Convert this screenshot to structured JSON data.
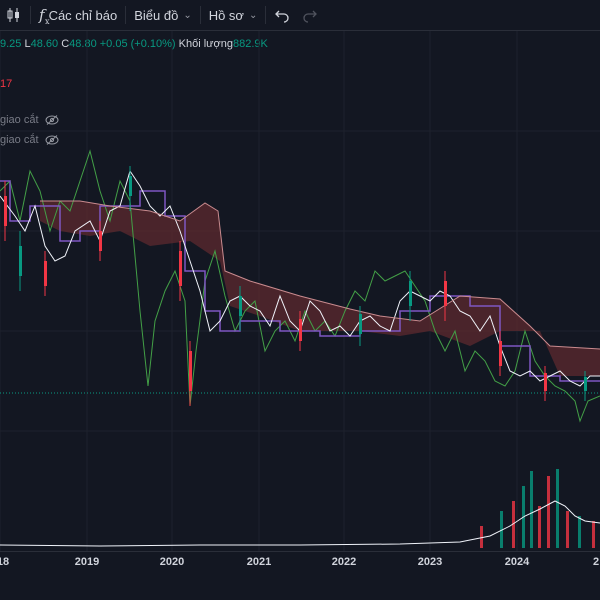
{
  "toolbar": {
    "indicators_label": "Các chỉ báo",
    "chart_label": "Biểu đồ",
    "profile_label": "Hồ sơ"
  },
  "ohlc": {
    "h_value": "9.25",
    "l_key": "L",
    "l_value": "48.60",
    "c_key": "C",
    "c_value": "48.80",
    "change": "+0.05 (+0.10%)",
    "volume_label": "Khối lượng",
    "volume_value": "882.9K"
  },
  "legend_value": "17",
  "indicators": [
    "giao cắt",
    "giao cắt"
  ],
  "colors": {
    "background": "#131722",
    "up": "#089981",
    "down": "#f23645",
    "purple_line": "#7e57c2",
    "green_line": "#43a047",
    "cloud": "#5d2a2f"
  },
  "x_axis": {
    "years": [
      "18",
      "2019",
      "2020",
      "2021",
      "2022",
      "2023",
      "2024",
      "2"
    ]
  }
}
